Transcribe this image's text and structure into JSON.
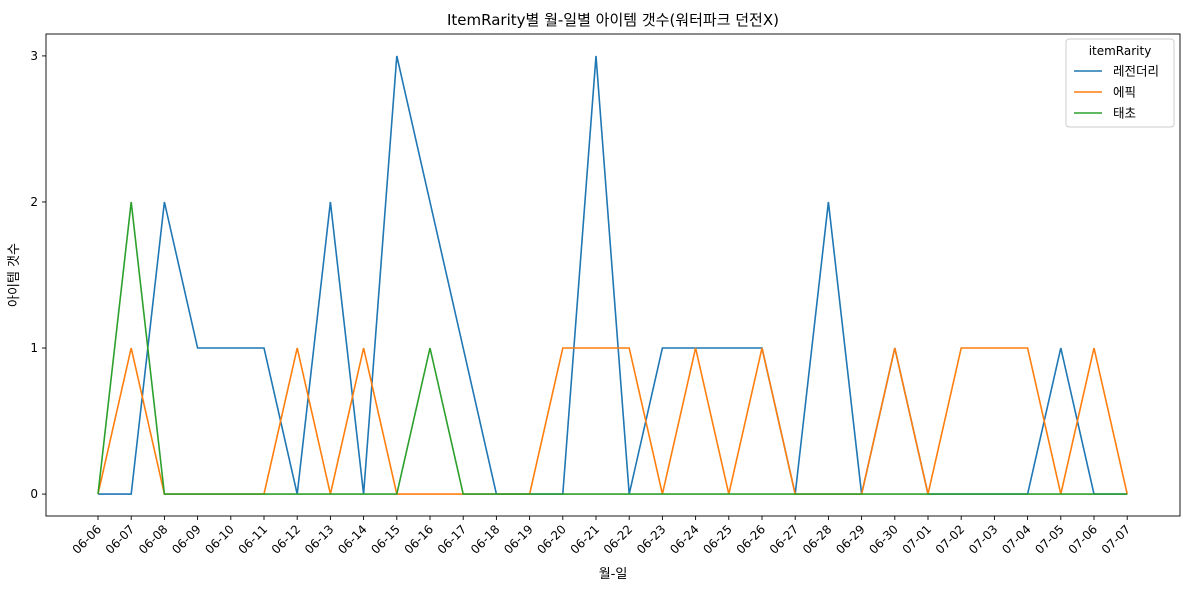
{
  "chart_data": {
    "type": "line",
    "title": "ItemRarity별 월-일별 아이템 갯수(워터파크 던전X)",
    "xlabel": "월-일",
    "ylabel": "아이템 갯수",
    "categories": [
      "06-06",
      "06-07",
      "06-08",
      "06-09",
      "06-10",
      "06-11",
      "06-12",
      "06-13",
      "06-14",
      "06-15",
      "06-16",
      "06-17",
      "06-18",
      "06-19",
      "06-20",
      "06-21",
      "06-22",
      "06-23",
      "06-24",
      "06-25",
      "06-26",
      "06-27",
      "06-28",
      "06-29",
      "06-30",
      "07-01",
      "07-02",
      "07-03",
      "07-04",
      "07-05",
      "07-06",
      "07-07"
    ],
    "yticks": [
      "0",
      "1",
      "2",
      "3"
    ],
    "ylim": [
      -0.15,
      3.15
    ],
    "grid": false,
    "legend": {
      "title": "itemRarity",
      "position": "top-right"
    },
    "series": [
      {
        "name": "레전더리",
        "color": "#1f77b4",
        "values": [
          0,
          0,
          2,
          1,
          1,
          1,
          0,
          2,
          0,
          3,
          2,
          1,
          0,
          0,
          0,
          3,
          0,
          1,
          1,
          1,
          1,
          0,
          2,
          0,
          1,
          0,
          0,
          0,
          0,
          1,
          0,
          0
        ]
      },
      {
        "name": "에픽",
        "color": "#ff7f0e",
        "values": [
          0,
          1,
          0,
          0,
          0,
          0,
          1,
          0,
          1,
          0,
          0,
          0,
          0,
          0,
          1,
          1,
          1,
          0,
          1,
          0,
          1,
          0,
          0,
          0,
          1,
          0,
          1,
          1,
          1,
          0,
          1,
          0
        ]
      },
      {
        "name": "태초",
        "color": "#2ca02c",
        "values": [
          0,
          2,
          0,
          0,
          0,
          0,
          0,
          0,
          0,
          0,
          1,
          0,
          0,
          0,
          0,
          0,
          0,
          0,
          0,
          0,
          0,
          0,
          0,
          0,
          0,
          0,
          0,
          0,
          0,
          0,
          0,
          0
        ]
      }
    ]
  }
}
